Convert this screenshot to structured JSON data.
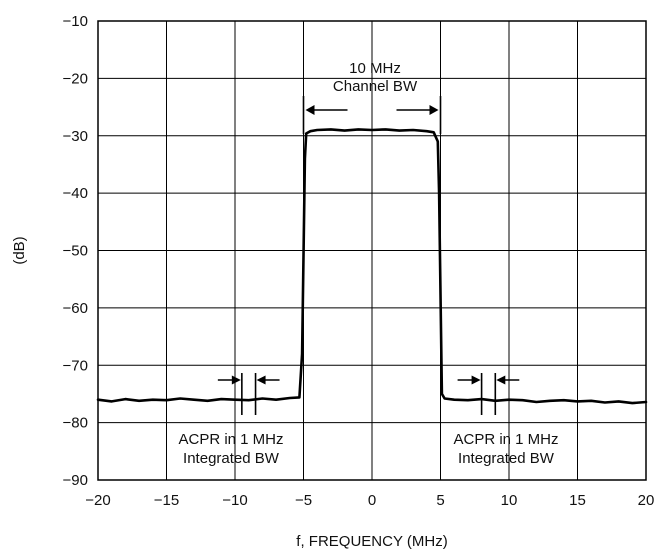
{
  "chart_data": {
    "type": "line",
    "title": "",
    "xlabel": "f, FREQUENCY (MHz)",
    "ylabel": "(dB)",
    "xlim": [
      -20,
      20
    ],
    "ylim": [
      -90,
      -10
    ],
    "x_ticks": [
      -20,
      -15,
      -10,
      -5,
      0,
      5,
      10,
      15,
      20
    ],
    "y_ticks": [
      -10,
      -20,
      -30,
      -40,
      -50,
      -60,
      -70,
      -80,
      -90
    ],
    "x_tick_labels": [
      "−20",
      "−15",
      "−10",
      "−5",
      "0",
      "5",
      "10",
      "15",
      "20"
    ],
    "y_tick_labels": [
      "−10",
      "−20",
      "−30",
      "−40",
      "−50",
      "−60",
      "−70",
      "−80",
      "−90"
    ],
    "grid": true,
    "series": [
      {
        "x": [
          -20,
          -19,
          -18,
          -17,
          -16,
          -15,
          -14,
          -13,
          -12,
          -11,
          -10,
          -9,
          -8,
          -7,
          -6,
          -5.3,
          -5.1,
          -4.9,
          -4.8,
          -4.5,
          -4,
          -3,
          -2,
          -1,
          0,
          1,
          2,
          3,
          4,
          4.5,
          4.8,
          4.9,
          5.1,
          5.3,
          6,
          7,
          8,
          9,
          10,
          11,
          12,
          13,
          14,
          15,
          16,
          17,
          18,
          19,
          20
        ],
        "y": [
          -76,
          -76.3,
          -75.9,
          -76.2,
          -76,
          -76.1,
          -75.8,
          -76,
          -76.2,
          -75.9,
          -76,
          -76.1,
          -75.8,
          -76,
          -75.7,
          -75.6,
          -68,
          -34,
          -29.6,
          -29.2,
          -29,
          -28.9,
          -29.1,
          -28.9,
          -29,
          -28.9,
          -29.1,
          -29,
          -29.2,
          -29.4,
          -31,
          -40,
          -75,
          -75.8,
          -76,
          -76.1,
          -75.9,
          -76.2,
          -76,
          -76.1,
          -76.4,
          -76.2,
          -76.1,
          -76.3,
          -76.2,
          -76.5,
          -76.3,
          -76.6,
          -76.4
        ]
      }
    ],
    "annotations": {
      "channel_bw": {
        "lines": [
          "10 MHz",
          "Channel BW"
        ],
        "from_x": -5,
        "to_x": 5
      },
      "acpr_left": {
        "lines": [
          "ACPR in 1 MHz",
          "Integrated BW"
        ],
        "from_x": -9.5,
        "to_x": -8.5
      },
      "acpr_right": {
        "lines": [
          "ACPR in 1 MHz",
          "Integrated BW"
        ],
        "from_x": 8,
        "to_x": 9
      }
    }
  }
}
